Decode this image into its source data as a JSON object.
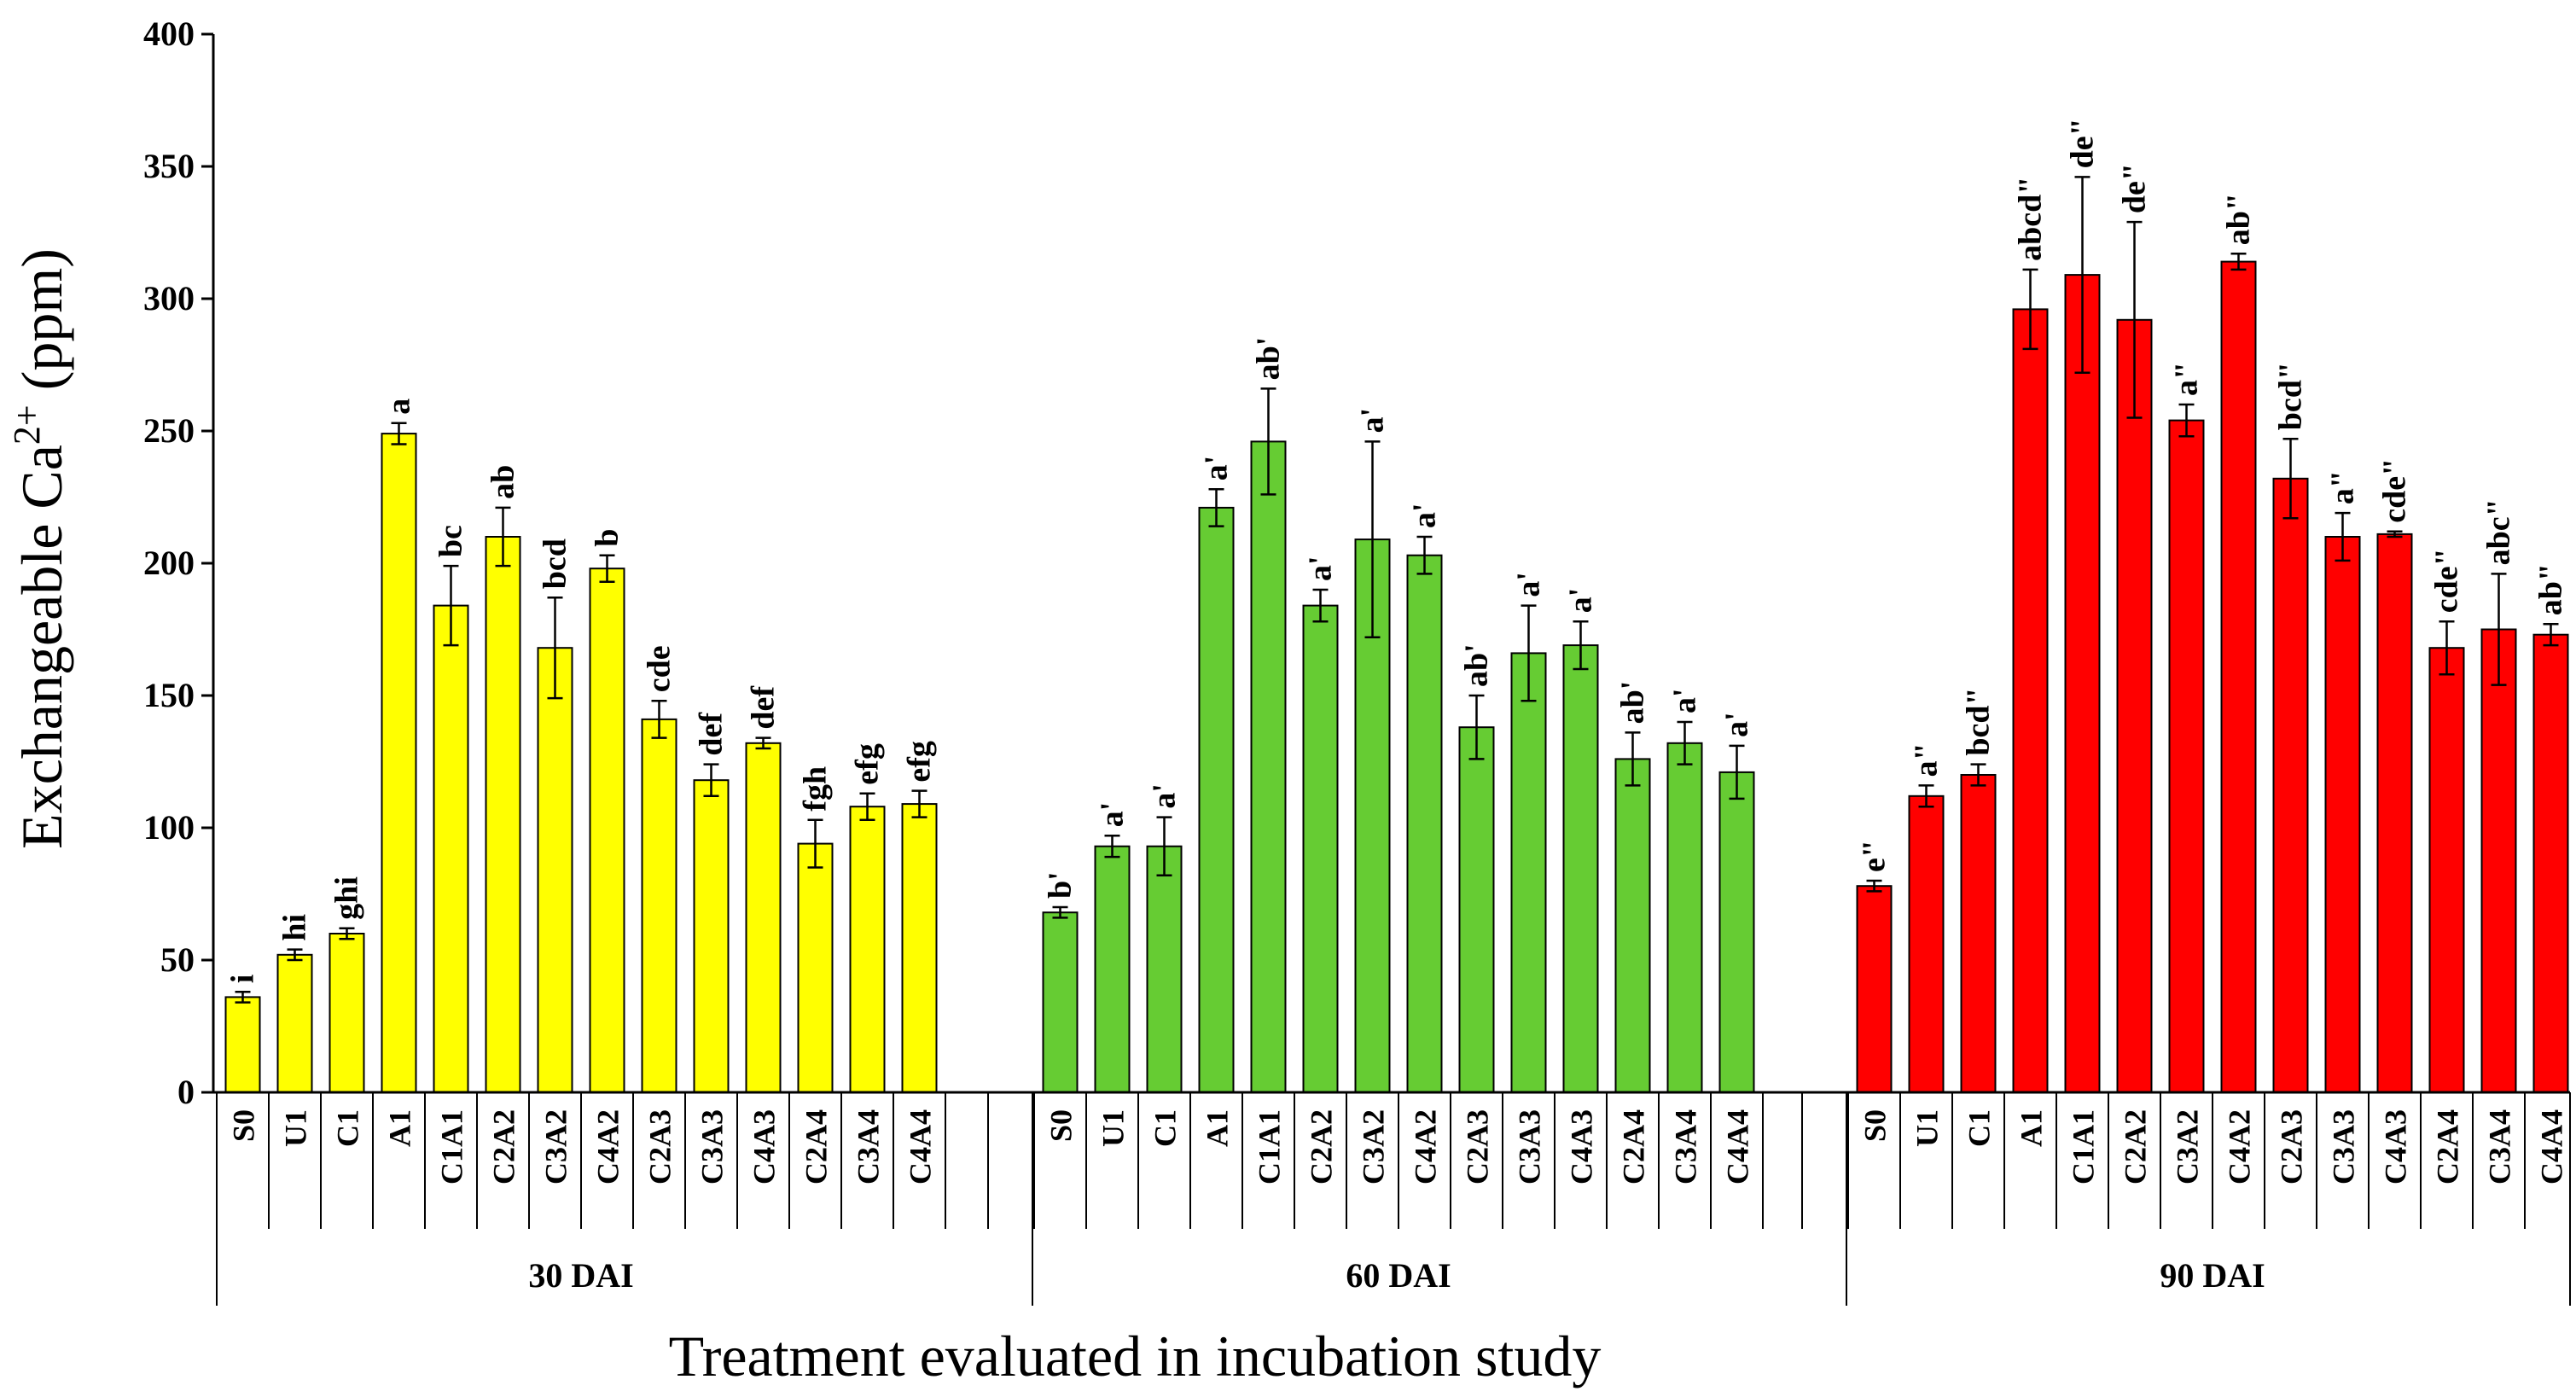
{
  "chart_data": {
    "type": "bar",
    "title": "",
    "xlabel": "Treatment evaluated in incubation study",
    "ylabel": "Exchangeable Ca",
    "ylabel_sup": "2+",
    "ylabel_unit": " (ppm)",
    "ylim": [
      0,
      400
    ],
    "yticks": [
      "0",
      "50",
      "100",
      "150",
      "200",
      "250",
      "300",
      "350",
      "400"
    ],
    "grid": false,
    "legend": "none",
    "categories": [
      "S0",
      "U1",
      "C1",
      "A1",
      "C1A1",
      "C2A2",
      "C3A2",
      "C4A2",
      "C2A3",
      "C3A3",
      "C4A3",
      "C2A4",
      "C3A4",
      "C4A4"
    ],
    "series": [
      {
        "name": "30 DAI",
        "color": "#ffff00",
        "values": [
          36,
          52,
          60,
          249,
          184,
          210,
          168,
          198,
          141,
          118,
          132,
          94,
          108,
          109
        ],
        "errors": [
          2,
          2,
          2,
          4,
          15,
          11,
          19,
          5,
          7,
          6,
          2,
          9,
          5,
          5
        ],
        "labels": [
          "i",
          "hi",
          "ghi",
          "a",
          "bc",
          "ab",
          "bcd",
          "b",
          "cde",
          "def",
          "def",
          "fgh",
          "efg",
          "efg"
        ]
      },
      {
        "name": "60 DAI",
        "color": "#66cc33",
        "values": [
          68,
          93,
          93,
          221,
          246,
          184,
          209,
          203,
          138,
          166,
          169,
          126,
          132,
          121
        ],
        "errors": [
          2,
          4,
          11,
          7,
          20,
          6,
          37,
          7,
          12,
          18,
          9,
          10,
          8,
          10
        ],
        "labels": [
          "b'",
          "a'",
          "a'",
          "a'",
          "ab'",
          "a'",
          "a'",
          "a'",
          "ab'",
          "a'",
          "a'",
          "ab'",
          "a'",
          "a'"
        ]
      },
      {
        "name": "90 DAI",
        "color": "#ff0000",
        "values": [
          78,
          112,
          120,
          296,
          309,
          292,
          254,
          314,
          232,
          210,
          211,
          168,
          175,
          173
        ],
        "errors": [
          2,
          4,
          4,
          15,
          37,
          37,
          6,
          3,
          15,
          9,
          1,
          10,
          21,
          4
        ],
        "labels": [
          "e\"",
          "a\"",
          "bcd\"",
          "abcd\"",
          "de\"",
          "de\"",
          "a\"",
          "ab\"",
          "bcd\"",
          "a\"",
          "cde\"",
          "cde\"",
          "abc\"",
          "ab\""
        ]
      }
    ]
  }
}
